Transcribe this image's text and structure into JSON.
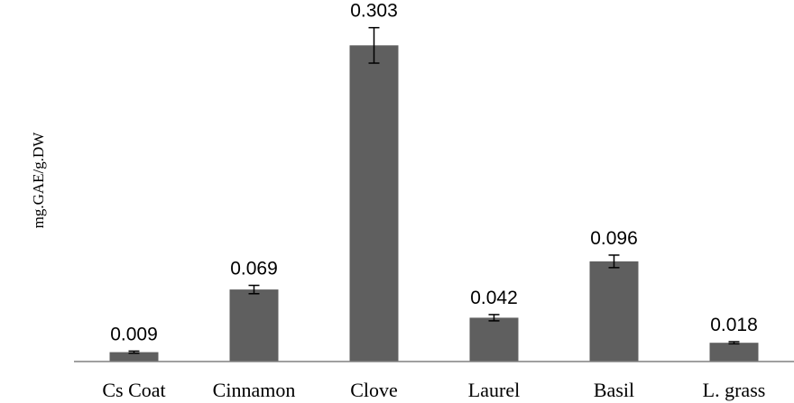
{
  "chart_data": {
    "type": "bar",
    "title": "",
    "xlabel": "",
    "ylabel": "mg.GAE/g.DW",
    "categories": [
      "Cs Coat",
      "Cinnamon",
      "Clove",
      "Laurel",
      "Basil",
      "L. grass"
    ],
    "values": [
      0.009,
      0.069,
      0.303,
      0.042,
      0.096,
      0.018
    ],
    "data_labels": [
      "0.009",
      "0.069",
      "0.303",
      "0.042",
      "0.096",
      "0.018"
    ],
    "error": [
      0.001,
      0.004,
      0.017,
      0.003,
      0.006,
      0.001
    ],
    "ylim": [
      0,
      0.325
    ],
    "grid": false,
    "legend": "none",
    "bar_color": "#5f5f5f"
  }
}
